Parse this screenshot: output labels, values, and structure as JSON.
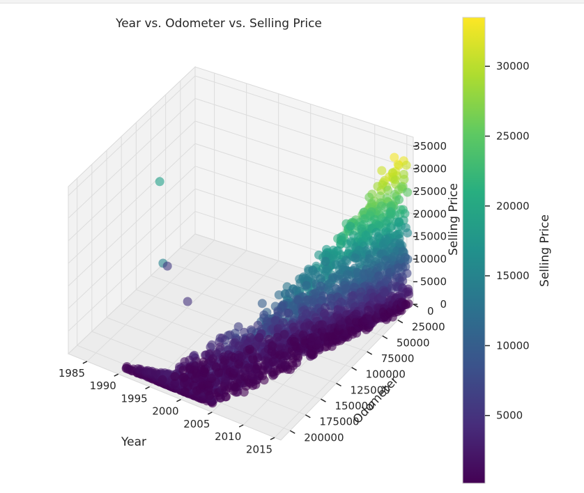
{
  "chart_data": {
    "type": "scatter",
    "projection": "3d",
    "title": "Year vs. Odometer vs. Selling Price",
    "xlabel": "Year",
    "ylabel": "Odometer",
    "zlabel": "Selling Price",
    "x_ticks": [
      1985,
      1990,
      1995,
      2000,
      2005,
      2010,
      2015
    ],
    "y_ticks": [
      0,
      25000,
      50000,
      75000,
      100000,
      125000,
      150000,
      175000,
      200000
    ],
    "z_ticks": [
      0,
      5000,
      10000,
      15000,
      20000,
      25000,
      30000,
      35000
    ],
    "colormap": "viridis",
    "grid": true,
    "colorbar": {
      "label": "Selling Price",
      "ticks": [
        5000,
        10000,
        15000,
        20000,
        25000,
        30000
      ],
      "range": [
        150,
        33500
      ]
    },
    "points_sample": [
      {
        "year": 1982,
        "odometer": 60000,
        "price": 19000
      },
      {
        "year": 1990,
        "odometer": 140000,
        "price": 15000
      },
      {
        "year": 1986,
        "odometer": 90000,
        "price": 6000
      },
      {
        "year": 1992,
        "odometer": 120000,
        "price": 5000
      },
      {
        "year": 2000,
        "odometer": 150000,
        "price": 3000
      },
      {
        "year": 2005,
        "odometer": 100000,
        "price": 8000
      },
      {
        "year": 2008,
        "odometer": 60000,
        "price": 14000
      },
      {
        "year": 2010,
        "odometer": 40000,
        "price": 20000
      },
      {
        "year": 2012,
        "odometer": 30000,
        "price": 26000
      },
      {
        "year": 2013,
        "odometer": 20000,
        "price": 31000
      },
      {
        "year": 2014,
        "odometer": 10000,
        "price": 33000
      },
      {
        "year": 2015,
        "odometer": 5000,
        "price": 29000
      }
    ]
  }
}
